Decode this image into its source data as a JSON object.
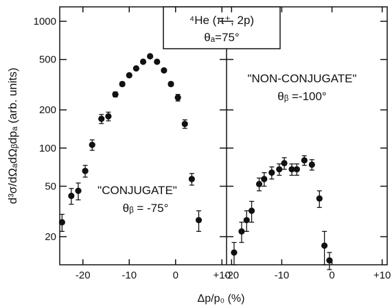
{
  "chart_data": {
    "type": "scatter",
    "ylabel": "d³σ/dΩₐdΩᵦdpₐ (arb. units)",
    "xlabel": "Δp/p₀ (%)",
    "yscale": "log",
    "ylim": [
      12,
      1300
    ],
    "yticks": [
      20,
      50,
      100,
      200,
      500,
      1000
    ],
    "ytick_labels": [
      "20",
      "50",
      "100",
      "200",
      "500",
      "1000"
    ],
    "title_box": {
      "line1": "⁴He (π⁺, 2p)",
      "line2": "θₐ=75°"
    },
    "panels": [
      {
        "name": "conjugate",
        "label": "\"CONJUGATE\"",
        "angle": "θᵦ = -75°",
        "xlim": [
          -25,
          11
        ],
        "xticks": [
          -20,
          -10,
          0,
          10
        ],
        "xtick_labels": [
          "-20",
          "-10",
          "0",
          "+10"
        ],
        "points": [
          {
            "x": -24.5,
            "y": 26,
            "err": 4
          },
          {
            "x": -22.5,
            "y": 42,
            "err": 6
          },
          {
            "x": -21,
            "y": 46,
            "err": 7
          },
          {
            "x": -19.5,
            "y": 66,
            "err": 7
          },
          {
            "x": -18,
            "y": 106,
            "err": 10
          },
          {
            "x": -16,
            "y": 170,
            "err": 14
          },
          {
            "x": -14.5,
            "y": 178,
            "err": 14
          },
          {
            "x": -13,
            "y": 265,
            "err": 12
          },
          {
            "x": -11.5,
            "y": 320,
            "err": 12
          },
          {
            "x": -10,
            "y": 375,
            "err": 12
          },
          {
            "x": -8.5,
            "y": 425,
            "err": 12
          },
          {
            "x": -7,
            "y": 480,
            "err": 12
          },
          {
            "x": -5.5,
            "y": 530,
            "err": 12
          },
          {
            "x": -4,
            "y": 480,
            "err": 12
          },
          {
            "x": -2.5,
            "y": 410,
            "err": 12
          },
          {
            "x": -1,
            "y": 320,
            "err": 12
          },
          {
            "x": 0.5,
            "y": 250,
            "err": 15
          },
          {
            "x": 2,
            "y": 155,
            "err": 12
          },
          {
            "x": 3.5,
            "y": 57,
            "err": 6
          },
          {
            "x": 5,
            "y": 27,
            "err": 5
          }
        ]
      },
      {
        "name": "non-conjugate",
        "label": "\"NON-CONJUGATE\"",
        "angle": "θᵦ =-100°",
        "xlim": [
          -21,
          11
        ],
        "xticks": [
          -20,
          -10,
          0,
          10
        ],
        "xtick_labels": [
          "-20",
          "-10",
          "0",
          "+10"
        ],
        "points": [
          {
            "x": -19.5,
            "y": 15,
            "err": 3
          },
          {
            "x": -18,
            "y": 22,
            "err": 4
          },
          {
            "x": -17,
            "y": 27,
            "err": 5
          },
          {
            "x": -16,
            "y": 32,
            "err": 6
          },
          {
            "x": -14.5,
            "y": 52,
            "err": 6
          },
          {
            "x": -13.5,
            "y": 57,
            "err": 7
          },
          {
            "x": -12,
            "y": 64,
            "err": 7
          },
          {
            "x": -10.5,
            "y": 68,
            "err": 7
          },
          {
            "x": -9.5,
            "y": 76,
            "err": 8
          },
          {
            "x": -8,
            "y": 68,
            "err": 7
          },
          {
            "x": -7,
            "y": 68,
            "err": 7
          },
          {
            "x": -5.5,
            "y": 80,
            "err": 7
          },
          {
            "x": -4,
            "y": 74,
            "err": 7
          },
          {
            "x": -2.5,
            "y": 40,
            "err": 6
          },
          {
            "x": -1.5,
            "y": 17,
            "err": 5
          },
          {
            "x": -0.5,
            "y": 13,
            "err": 2
          }
        ]
      }
    ]
  }
}
